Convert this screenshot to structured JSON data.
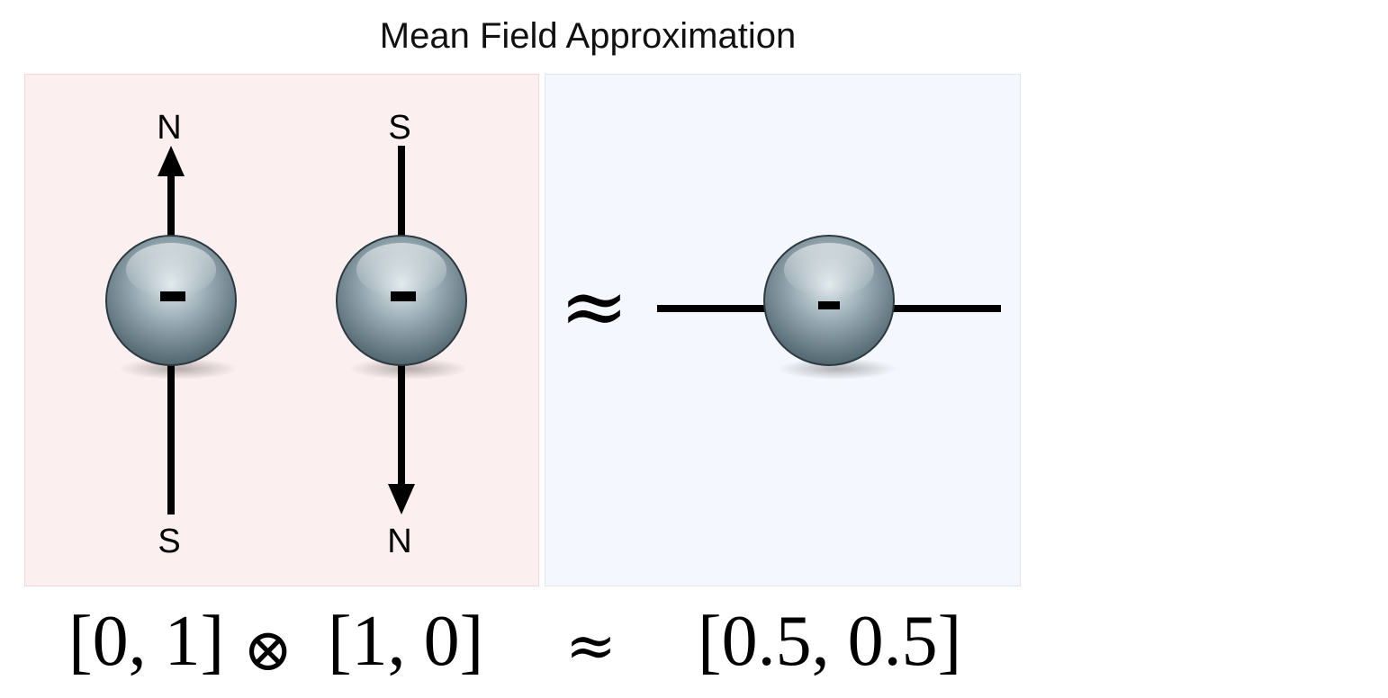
{
  "title": "Mean Field Approximation",
  "colors": {
    "left_panel_bg": "#fcefef",
    "right_panel_bg": "#f4f7fd",
    "sphere": "#8fa4ae",
    "line": "#000000"
  },
  "left_panel": {
    "particles": [
      {
        "charge": "-",
        "top_label": "N",
        "bottom_label": "S",
        "arrow": "up"
      },
      {
        "charge": "-",
        "top_label": "S",
        "bottom_label": "N",
        "arrow": "down"
      }
    ]
  },
  "approx_symbol": "≈",
  "right_panel": {
    "particle": {
      "charge": "-",
      "orientation": "horizontal"
    }
  },
  "formula": {
    "left_a": "[0, 1]",
    "otimes": "⊗",
    "left_b": "[1, 0]",
    "approx": "≈",
    "right": "[0.5, 0.5]"
  }
}
